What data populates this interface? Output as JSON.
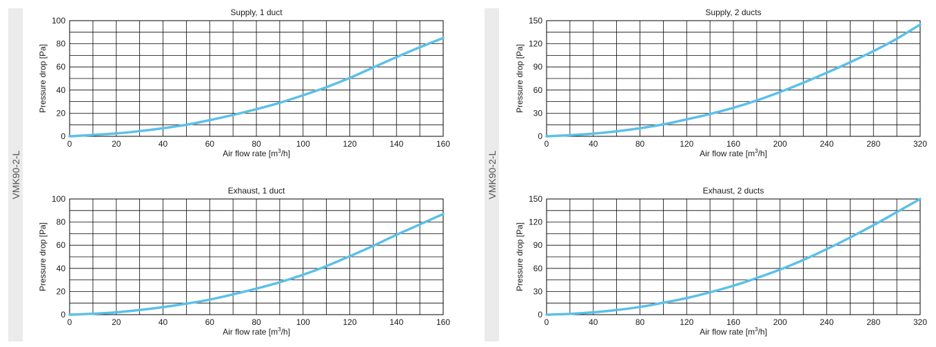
{
  "side_labels": [
    "VMK90-2-L",
    "VMK90-2-L"
  ],
  "curve_color": "#5bc0e8",
  "grid_color": "#000000",
  "chart_data": [
    {
      "type": "line",
      "title": "Supply, 1 duct",
      "xlabel_main": "Air flow rate [m",
      "xlabel_sup": "3",
      "xlabel_tail": "/h]",
      "ylabel": "Pressure drop [Pa]",
      "xlim": [
        0,
        160
      ],
      "ylim": [
        0,
        100
      ],
      "x_ticks": [
        0,
        20,
        40,
        60,
        80,
        100,
        120,
        140,
        160
      ],
      "y_ticks": [
        0,
        20,
        40,
        60,
        80,
        100
      ],
      "x_grid_step": 10,
      "y_grid_step": 10,
      "grid": true,
      "x": [
        0,
        10,
        20,
        30,
        40,
        50,
        60,
        70,
        80,
        90,
        100,
        110,
        120,
        130,
        140,
        150,
        160
      ],
      "y": [
        0,
        1.2,
        2.5,
        4.5,
        7,
        10,
        14,
        18.5,
        23.5,
        29,
        35.5,
        42.5,
        50.5,
        59.5,
        68.5,
        77,
        85
      ]
    },
    {
      "type": "line",
      "title": "Supply, 2 ducts",
      "xlabel_main": "Air flow rate [m",
      "xlabel_sup": "3",
      "xlabel_tail": "/h]",
      "ylabel": "Pressure drop [Pa]",
      "xlim": [
        0,
        320
      ],
      "ylim": [
        0,
        150
      ],
      "x_ticks": [
        0,
        40,
        80,
        120,
        160,
        200,
        240,
        280,
        320
      ],
      "y_ticks": [
        0,
        30,
        60,
        90,
        120,
        150
      ],
      "x_grid_step": 20,
      "y_grid_step": 15,
      "grid": true,
      "x": [
        0,
        20,
        40,
        60,
        80,
        100,
        120,
        140,
        160,
        180,
        200,
        220,
        240,
        260,
        280,
        300,
        320
      ],
      "y": [
        0,
        1.5,
        3.5,
        6.5,
        10.5,
        15.5,
        22,
        29,
        37,
        46.5,
        57.5,
        69.5,
        82.5,
        96,
        110.5,
        126.5,
        145
      ]
    },
    {
      "type": "line",
      "title": "Exhaust, 1 duct",
      "xlabel_main": "Air flow rate [m",
      "xlabel_sup": "3",
      "xlabel_tail": "/h]",
      "ylabel": "Pressure drop [Pa]",
      "xlim": [
        0,
        160
      ],
      "ylim": [
        0,
        100
      ],
      "x_ticks": [
        0,
        20,
        40,
        60,
        80,
        100,
        120,
        140,
        160
      ],
      "y_ticks": [
        0,
        20,
        40,
        60,
        80,
        100
      ],
      "x_grid_step": 10,
      "y_grid_step": 10,
      "grid": true,
      "x": [
        0,
        10,
        20,
        30,
        40,
        50,
        60,
        70,
        80,
        90,
        100,
        110,
        120,
        130,
        140,
        150,
        160
      ],
      "y": [
        0,
        0.8,
        2,
        4,
        6.5,
        9.5,
        13,
        17.5,
        22.5,
        28,
        34.5,
        42,
        50.5,
        59.5,
        69,
        78,
        87
      ]
    },
    {
      "type": "line",
      "title": "Exhaust, 2 ducts",
      "xlabel_main": "Air flow rate [m",
      "xlabel_sup": "3",
      "xlabel_tail": "/h]",
      "ylabel": "Pressure drop [Pa]",
      "xlim": [
        0,
        320
      ],
      "ylim": [
        0,
        150
      ],
      "x_ticks": [
        0,
        40,
        80,
        120,
        160,
        200,
        240,
        280,
        320
      ],
      "y_ticks": [
        0,
        30,
        60,
        90,
        120,
        150
      ],
      "x_grid_step": 20,
      "y_grid_step": 15,
      "grid": true,
      "x": [
        0,
        20,
        40,
        60,
        80,
        100,
        120,
        140,
        160,
        180,
        200,
        220,
        240,
        260,
        280,
        300,
        320
      ],
      "y": [
        0,
        1,
        3,
        6,
        10,
        15.5,
        21.5,
        29,
        37.5,
        47.5,
        58.5,
        71,
        85,
        100,
        116,
        133,
        150
      ]
    }
  ]
}
